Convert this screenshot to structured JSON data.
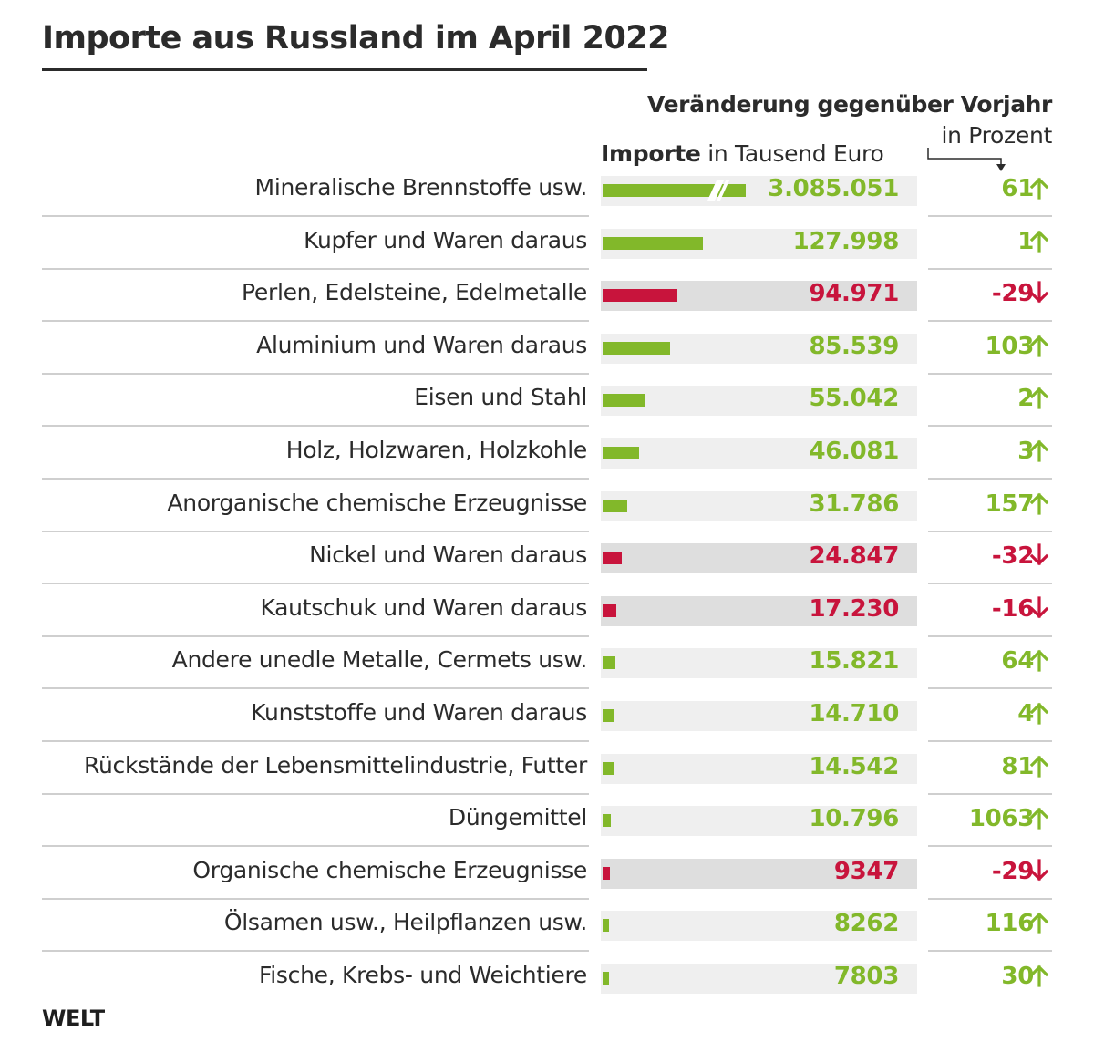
{
  "header": {
    "title": "Importe aus Russland im April 2022",
    "imports_header_bold": "Importe",
    "imports_header_rest": " in Tausend Euro",
    "change_header": "Veränderung gegenüber Vorjahr",
    "change_unit": "in Prozent"
  },
  "footer": {
    "source": "WELT"
  },
  "colors": {
    "positive": "#82b82a",
    "negative": "#c8143c",
    "text": "#2b2b2b"
  },
  "chart_data": {
    "type": "bar",
    "orientation": "horizontal",
    "title": "Importe aus Russland im April 2022",
    "value_label": "Importe in Tausend Euro",
    "change_label": "Veränderung gegenüber Vorjahr in Prozent",
    "first_bar_axis_break": true,
    "rows": [
      {
        "category": "Mineralische Brennstoffe usw.",
        "value": 3085051,
        "value_label": "3.085.051",
        "change": 61,
        "change_label": "61",
        "direction": "up"
      },
      {
        "category": "Kupfer und Waren daraus",
        "value": 127998,
        "value_label": "127.998",
        "change": 1,
        "change_label": "1",
        "direction": "up"
      },
      {
        "category": "Perlen, Edelsteine, Edelmetalle",
        "value": 94971,
        "value_label": "94.971",
        "change": -29,
        "change_label": "-29",
        "direction": "down"
      },
      {
        "category": "Aluminium und Waren daraus",
        "value": 85539,
        "value_label": "85.539",
        "change": 103,
        "change_label": "103",
        "direction": "up"
      },
      {
        "category": "Eisen und Stahl",
        "value": 55042,
        "value_label": "55.042",
        "change": 2,
        "change_label": "2",
        "direction": "up"
      },
      {
        "category": "Holz, Holzwaren, Holzkohle",
        "value": 46081,
        "value_label": "46.081",
        "change": 3,
        "change_label": "3",
        "direction": "up"
      },
      {
        "category": "Anorganische chemische Erzeugnisse",
        "value": 31786,
        "value_label": "31.786",
        "change": 157,
        "change_label": "157",
        "direction": "up"
      },
      {
        "category": "Nickel und Waren daraus",
        "value": 24847,
        "value_label": "24.847",
        "change": -32,
        "change_label": "-32",
        "direction": "down"
      },
      {
        "category": "Kautschuk und Waren daraus",
        "value": 17230,
        "value_label": "17.230",
        "change": -16,
        "change_label": "-16",
        "direction": "down"
      },
      {
        "category": "Andere unedle Metalle, Cermets usw.",
        "value": 15821,
        "value_label": "15.821",
        "change": 64,
        "change_label": "64",
        "direction": "up"
      },
      {
        "category": "Kunststoffe und Waren daraus",
        "value": 14710,
        "value_label": "14.710",
        "change": 4,
        "change_label": "4",
        "direction": "up"
      },
      {
        "category": "Rückstände der Lebensmittelindustrie, Futter",
        "value": 14542,
        "value_label": "14.542",
        "change": 81,
        "change_label": "81",
        "direction": "up"
      },
      {
        "category": "Düngemittel",
        "value": 10796,
        "value_label": "10.796",
        "change": 1063,
        "change_label": "1063",
        "direction": "up"
      },
      {
        "category": "Organische chemische Erzeugnisse",
        "value": 9347,
        "value_label": "9347",
        "change": -29,
        "change_label": "-29",
        "direction": "down"
      },
      {
        "category": "Ölsamen usw., Heilpflanzen usw.",
        "value": 8262,
        "value_label": "8262",
        "change": 116,
        "change_label": "116",
        "direction": "up"
      },
      {
        "category": "Fische, Krebs- und Weichtiere",
        "value": 7803,
        "value_label": "7803",
        "change": 30,
        "change_label": "30",
        "direction": "up"
      }
    ]
  }
}
